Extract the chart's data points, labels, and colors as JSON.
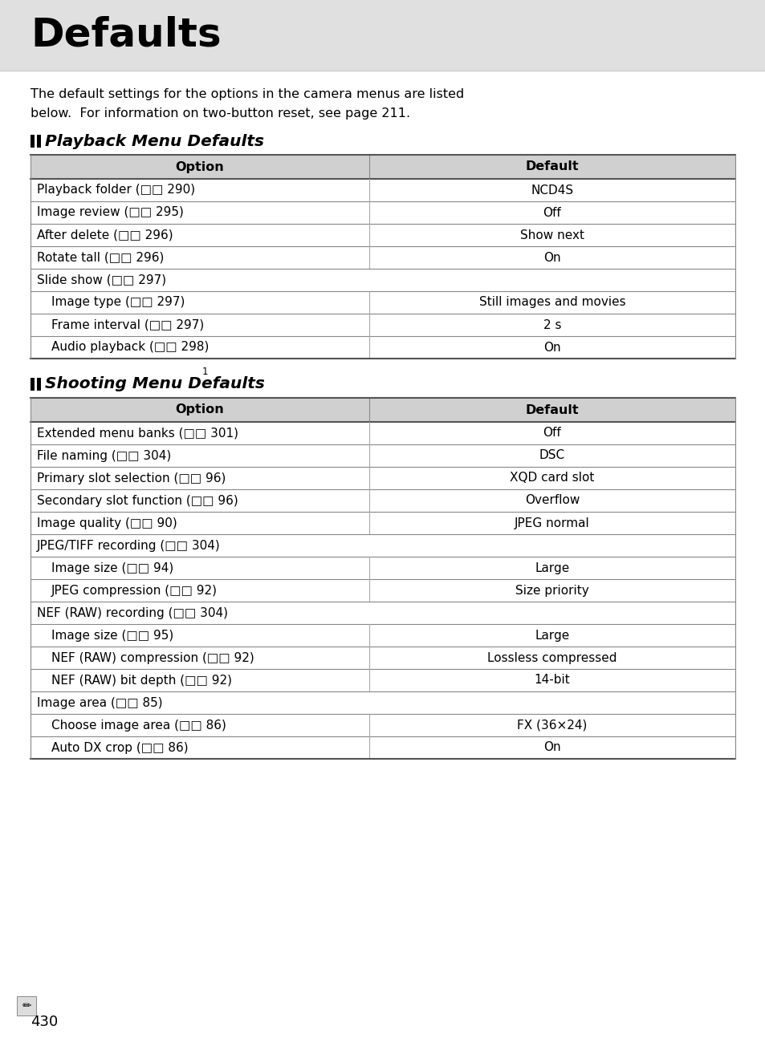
{
  "title": "Defaults",
  "header_bg": "#e0e0e0",
  "page_bg": "#ffffff",
  "intro_text1": "The default settings for the options in the camera menus are listed",
  "intro_text2": "below.  For information on two-button reset, see page 211.",
  "section1_title": "Playback Menu Defaults",
  "section2_title": "Shooting Menu Defaults",
  "section2_superscript": "1",
  "table_header_bg": "#d0d0d0",
  "col1_header": "Option",
  "col2_header": "Default",
  "playback_rows": [
    {
      "option": "Playback folder (\u0001 290)",
      "default": "NCD4S",
      "indent": false,
      "span": false
    },
    {
      "option": "Image review (\u0001 295)",
      "default": "Off",
      "indent": false,
      "span": false
    },
    {
      "option": "After delete (\u0001 296)",
      "default": "Show next",
      "indent": false,
      "span": false
    },
    {
      "option": "Rotate tall (\u0001 296)",
      "default": "On",
      "indent": false,
      "span": false
    },
    {
      "option": "Slide show (\u0001 297)",
      "default": "",
      "indent": false,
      "span": true
    },
    {
      "option": "Image type (\u0001 297)",
      "default": "Still images and movies",
      "indent": true,
      "span": false
    },
    {
      "option": "Frame interval (\u0001 297)",
      "default": "2 s",
      "indent": true,
      "span": false
    },
    {
      "option": "Audio playback (\u0001 298)",
      "default": "On",
      "indent": true,
      "span": false
    }
  ],
  "shooting_rows": [
    {
      "option": "Extended menu banks (\u0001 301)",
      "default": "Off",
      "indent": false,
      "span": false
    },
    {
      "option": "File naming (\u0001 304)",
      "default": "DSC",
      "indent": false,
      "span": false
    },
    {
      "option": "Primary slot selection (\u0001 96)",
      "default": "XQD card slot",
      "indent": false,
      "span": false
    },
    {
      "option": "Secondary slot function (\u0001 96)",
      "default": "Overflow",
      "indent": false,
      "span": false
    },
    {
      "option": "Image quality (\u0001 90)",
      "default": "JPEG normal",
      "indent": false,
      "span": false
    },
    {
      "option": "JPEG/TIFF recording (\u0001 304)",
      "default": "",
      "indent": false,
      "span": true
    },
    {
      "option": "Image size (\u0001 94)",
      "default": "Large",
      "indent": true,
      "span": false
    },
    {
      "option": "JPEG compression (\u0001 92)",
      "default": "Size priority",
      "indent": true,
      "span": false
    },
    {
      "option": "NEF (RAW) recording (\u0001 304)",
      "default": "",
      "indent": false,
      "span": true
    },
    {
      "option": "Image size (\u0001 95)",
      "default": "Large",
      "indent": true,
      "span": false
    },
    {
      "option": "NEF (RAW) compression (\u0001 92)",
      "default": "Lossless compressed",
      "indent": true,
      "span": false
    },
    {
      "option": "NEF (RAW) bit depth (\u0001 92)",
      "default": "14-bit",
      "indent": true,
      "span": false
    },
    {
      "option": "Image area (\u0001 85)",
      "default": "",
      "indent": false,
      "span": true
    },
    {
      "option": "Choose image area (\u0001 86)",
      "default": "FX (36×24)",
      "indent": true,
      "span": false
    },
    {
      "option": "Auto DX crop (\u0001 86)",
      "default": "On",
      "indent": true,
      "span": false
    }
  ],
  "page_number": "430"
}
